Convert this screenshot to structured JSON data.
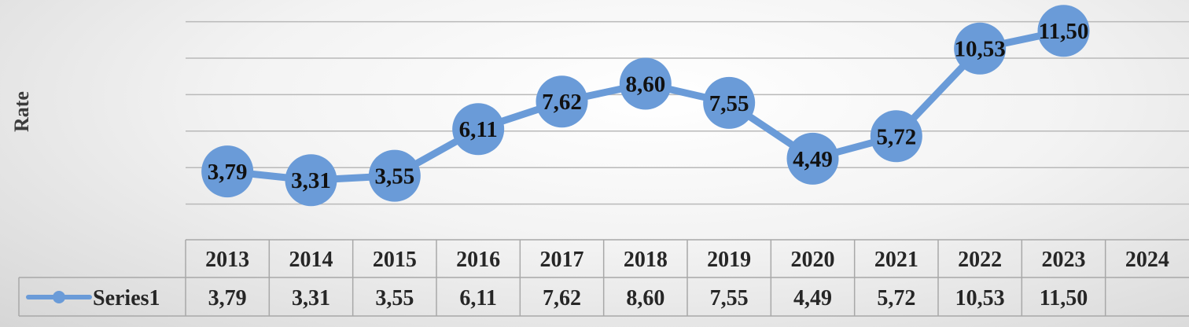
{
  "colors": {
    "series": "#6a9bd8",
    "grid": "#b9b9b9"
  },
  "chart_data": {
    "type": "line",
    "ylabel": "Rate",
    "categories": [
      "2013",
      "2014",
      "2015",
      "2016",
      "2017",
      "2018",
      "2019",
      "2020",
      "2021",
      "2022",
      "2023",
      "2024"
    ],
    "series": [
      {
        "name": "Series1",
        "values": [
          3.79,
          3.31,
          3.55,
          6.11,
          7.62,
          8.6,
          7.55,
          4.49,
          5.72,
          10.53,
          11.5,
          null
        ],
        "labels": [
          "3,79",
          "3,31",
          "3,55",
          "6,11",
          "7,62",
          "8,60",
          "7,55",
          "4,49",
          "5,72",
          "10,53",
          "11,50",
          ""
        ]
      }
    ],
    "ylim": [
      0,
      12
    ],
    "grid": true,
    "legend": "data-table"
  }
}
